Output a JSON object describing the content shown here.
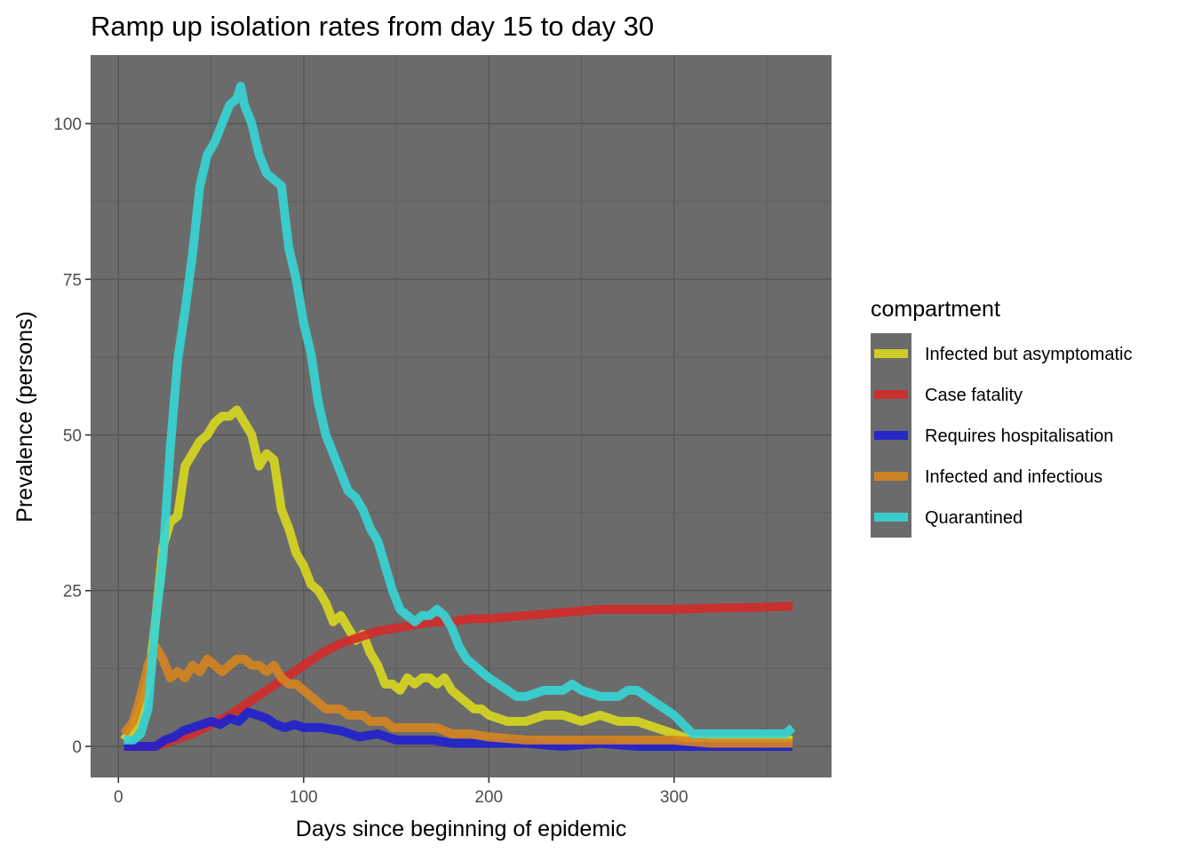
{
  "chart_data": {
    "type": "line",
    "title": "Ramp up isolation rates from day 15 to day 30",
    "xlabel": "Days since beginning of epidemic",
    "ylabel": "Prevalence (persons)",
    "xlim": [
      -15,
      385
    ],
    "ylim": [
      -5,
      111
    ],
    "x_ticks": [
      0,
      100,
      200,
      300
    ],
    "y_ticks": [
      0,
      25,
      50,
      75,
      100
    ],
    "x_tick_labels": [
      "0",
      "100",
      "200",
      "300"
    ],
    "y_tick_labels": [
      "0",
      "25",
      "50",
      "75",
      "100"
    ],
    "grid": true,
    "panel_background": "#6b6b6b",
    "legend": {
      "title": "compartment",
      "position": "right",
      "background": "#6b6b6b"
    },
    "series": [
      {
        "name": "Infected but asymptomatic",
        "color": "#d8d820",
        "points": [
          [
            3,
            1
          ],
          [
            8,
            3
          ],
          [
            12,
            6
          ],
          [
            16,
            10
          ],
          [
            20,
            20
          ],
          [
            24,
            32
          ],
          [
            28,
            36
          ],
          [
            32,
            37
          ],
          [
            36,
            45
          ],
          [
            40,
            47
          ],
          [
            44,
            49
          ],
          [
            48,
            50
          ],
          [
            52,
            52
          ],
          [
            56,
            53
          ],
          [
            60,
            53
          ],
          [
            64,
            54
          ],
          [
            68,
            52
          ],
          [
            72,
            50
          ],
          [
            76,
            45
          ],
          [
            80,
            47
          ],
          [
            84,
            46
          ],
          [
            88,
            38
          ],
          [
            92,
            35
          ],
          [
            96,
            31
          ],
          [
            100,
            29
          ],
          [
            104,
            26
          ],
          [
            108,
            25
          ],
          [
            112,
            23
          ],
          [
            116,
            20
          ],
          [
            120,
            21
          ],
          [
            124,
            19
          ],
          [
            128,
            17
          ],
          [
            132,
            18
          ],
          [
            136,
            15
          ],
          [
            140,
            13
          ],
          [
            144,
            10
          ],
          [
            148,
            10
          ],
          [
            152,
            9
          ],
          [
            156,
            11
          ],
          [
            160,
            10
          ],
          [
            164,
            11
          ],
          [
            168,
            11
          ],
          [
            172,
            10
          ],
          [
            176,
            11
          ],
          [
            180,
            9
          ],
          [
            184,
            8
          ],
          [
            188,
            7
          ],
          [
            192,
            6
          ],
          [
            196,
            6
          ],
          [
            200,
            5
          ],
          [
            210,
            4
          ],
          [
            220,
            4
          ],
          [
            230,
            5
          ],
          [
            240,
            5
          ],
          [
            250,
            4
          ],
          [
            260,
            5
          ],
          [
            270,
            4
          ],
          [
            280,
            4
          ],
          [
            290,
            3
          ],
          [
            300,
            2
          ],
          [
            310,
            1
          ],
          [
            320,
            1
          ],
          [
            330,
            1
          ],
          [
            340,
            1
          ],
          [
            350,
            1
          ],
          [
            360,
            1
          ],
          [
            364,
            1
          ]
        ]
      },
      {
        "name": "Case fatality",
        "color": "#d42a2a",
        "points": [
          [
            3,
            0
          ],
          [
            20,
            0
          ],
          [
            30,
            1
          ],
          [
            40,
            2
          ],
          [
            50,
            3.5
          ],
          [
            60,
            5
          ],
          [
            70,
            7
          ],
          [
            80,
            9
          ],
          [
            90,
            11
          ],
          [
            100,
            13
          ],
          [
            110,
            15
          ],
          [
            120,
            16.5
          ],
          [
            130,
            17.5
          ],
          [
            140,
            18.5
          ],
          [
            150,
            19
          ],
          [
            160,
            19.5
          ],
          [
            170,
            20
          ],
          [
            180,
            20
          ],
          [
            190,
            20.5
          ],
          [
            200,
            20.5
          ],
          [
            220,
            21
          ],
          [
            240,
            21.5
          ],
          [
            260,
            22
          ],
          [
            280,
            22
          ],
          [
            300,
            22
          ],
          [
            320,
            22.2
          ],
          [
            340,
            22.3
          ],
          [
            364,
            22.5
          ]
        ]
      },
      {
        "name": "Requires hospitalisation",
        "color": "#2020d0",
        "points": [
          [
            3,
            0
          ],
          [
            10,
            0
          ],
          [
            20,
            0
          ],
          [
            25,
            1
          ],
          [
            30,
            1.5
          ],
          [
            35,
            2.5
          ],
          [
            40,
            3
          ],
          [
            45,
            3.5
          ],
          [
            50,
            4
          ],
          [
            55,
            3.5
          ],
          [
            60,
            4.5
          ],
          [
            65,
            4
          ],
          [
            70,
            5.5
          ],
          [
            75,
            5
          ],
          [
            80,
            4.5
          ],
          [
            85,
            3.5
          ],
          [
            90,
            3
          ],
          [
            95,
            3.5
          ],
          [
            100,
            3
          ],
          [
            110,
            3
          ],
          [
            120,
            2.5
          ],
          [
            130,
            1.5
          ],
          [
            140,
            2
          ],
          [
            150,
            1
          ],
          [
            160,
            1
          ],
          [
            170,
            1
          ],
          [
            180,
            0.5
          ],
          [
            190,
            0.5
          ],
          [
            200,
            0.5
          ],
          [
            220,
            0.5
          ],
          [
            240,
            0
          ],
          [
            260,
            0.5
          ],
          [
            280,
            0
          ],
          [
            300,
            0
          ],
          [
            320,
            0
          ],
          [
            340,
            0
          ],
          [
            364,
            0
          ]
        ]
      },
      {
        "name": "Infected and infectious",
        "color": "#d68520",
        "points": [
          [
            3,
            2
          ],
          [
            8,
            4
          ],
          [
            12,
            8
          ],
          [
            16,
            13
          ],
          [
            20,
            16
          ],
          [
            24,
            14
          ],
          [
            28,
            11
          ],
          [
            32,
            12
          ],
          [
            36,
            11
          ],
          [
            40,
            13
          ],
          [
            44,
            12
          ],
          [
            48,
            14
          ],
          [
            52,
            13
          ],
          [
            56,
            12
          ],
          [
            60,
            13
          ],
          [
            64,
            14
          ],
          [
            68,
            14
          ],
          [
            72,
            13
          ],
          [
            76,
            13
          ],
          [
            80,
            12
          ],
          [
            84,
            13
          ],
          [
            88,
            11
          ],
          [
            92,
            10
          ],
          [
            96,
            10
          ],
          [
            100,
            9
          ],
          [
            104,
            8
          ],
          [
            108,
            7
          ],
          [
            112,
            6
          ],
          [
            116,
            6
          ],
          [
            120,
            6
          ],
          [
            124,
            5
          ],
          [
            128,
            5
          ],
          [
            132,
            5
          ],
          [
            136,
            4
          ],
          [
            140,
            4
          ],
          [
            144,
            4
          ],
          [
            148,
            3
          ],
          [
            152,
            3
          ],
          [
            156,
            3
          ],
          [
            160,
            3
          ],
          [
            164,
            3
          ],
          [
            168,
            3
          ],
          [
            172,
            3
          ],
          [
            180,
            2
          ],
          [
            190,
            2
          ],
          [
            200,
            1.5
          ],
          [
            220,
            1
          ],
          [
            240,
            1
          ],
          [
            260,
            1
          ],
          [
            280,
            1
          ],
          [
            300,
            1
          ],
          [
            320,
            0.5
          ],
          [
            340,
            0.5
          ],
          [
            364,
            0.5
          ]
        ]
      },
      {
        "name": "Quarantined",
        "color": "#36d6d6",
        "points": [
          [
            3,
            1
          ],
          [
            8,
            1
          ],
          [
            12,
            2
          ],
          [
            16,
            6
          ],
          [
            20,
            20
          ],
          [
            24,
            30
          ],
          [
            28,
            48
          ],
          [
            32,
            62
          ],
          [
            36,
            70
          ],
          [
            40,
            79
          ],
          [
            44,
            90
          ],
          [
            48,
            95
          ],
          [
            52,
            97
          ],
          [
            56,
            100
          ],
          [
            60,
            103
          ],
          [
            64,
            104
          ],
          [
            66,
            106
          ],
          [
            68,
            103
          ],
          [
            72,
            100
          ],
          [
            76,
            95
          ],
          [
            80,
            92
          ],
          [
            84,
            91
          ],
          [
            88,
            90
          ],
          [
            92,
            80
          ],
          [
            96,
            75
          ],
          [
            100,
            68
          ],
          [
            104,
            63
          ],
          [
            108,
            55
          ],
          [
            112,
            50
          ],
          [
            116,
            47
          ],
          [
            120,
            44
          ],
          [
            124,
            41
          ],
          [
            128,
            40
          ],
          [
            132,
            38
          ],
          [
            136,
            35
          ],
          [
            140,
            33
          ],
          [
            144,
            29
          ],
          [
            148,
            25
          ],
          [
            152,
            22
          ],
          [
            156,
            21
          ],
          [
            160,
            20
          ],
          [
            164,
            21
          ],
          [
            168,
            21
          ],
          [
            172,
            22
          ],
          [
            176,
            21
          ],
          [
            180,
            19
          ],
          [
            184,
            16
          ],
          [
            188,
            14
          ],
          [
            192,
            13
          ],
          [
            196,
            12
          ],
          [
            200,
            11
          ],
          [
            205,
            10
          ],
          [
            210,
            9
          ],
          [
            215,
            8
          ],
          [
            220,
            8
          ],
          [
            230,
            9
          ],
          [
            240,
            9
          ],
          [
            245,
            10
          ],
          [
            250,
            9
          ],
          [
            260,
            8
          ],
          [
            270,
            8
          ],
          [
            275,
            9
          ],
          [
            280,
            9
          ],
          [
            290,
            7
          ],
          [
            300,
            5
          ],
          [
            310,
            2
          ],
          [
            320,
            2
          ],
          [
            330,
            2
          ],
          [
            340,
            2
          ],
          [
            350,
            2
          ],
          [
            360,
            2
          ],
          [
            364,
            3
          ]
        ]
      }
    ]
  }
}
